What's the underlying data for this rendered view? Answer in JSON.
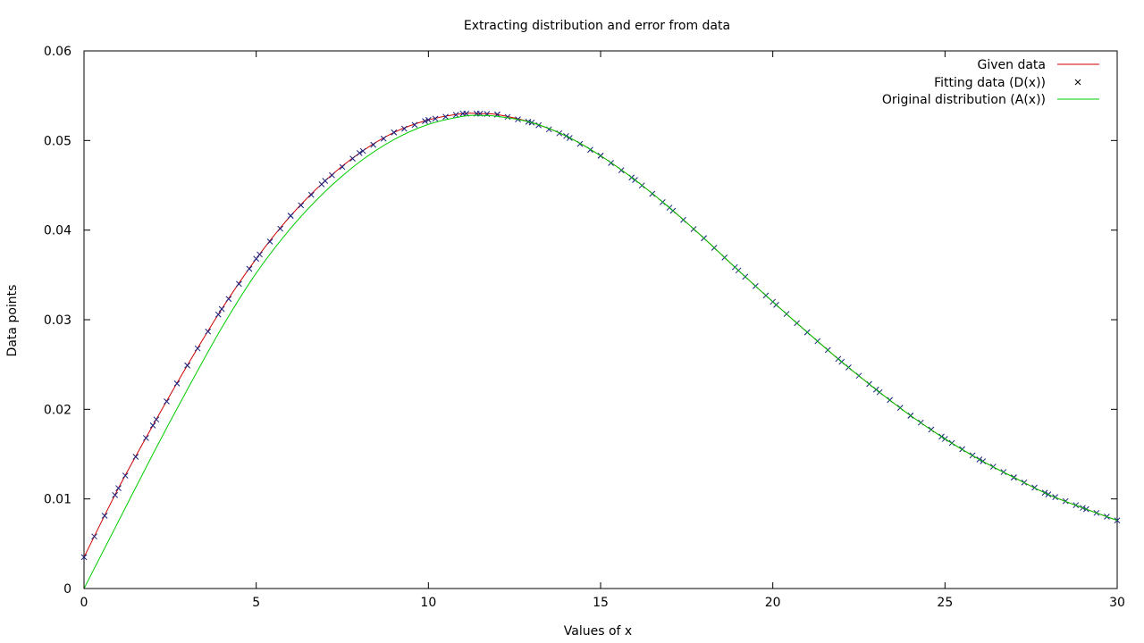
{
  "chart_data": {
    "type": "line",
    "title": "Extracting distribution and error from data",
    "xlabel": "Values of x",
    "ylabel": "Data points",
    "xlim": [
      0,
      30
    ],
    "ylim": [
      0,
      0.06
    ],
    "xticks": [
      0,
      5,
      10,
      15,
      20,
      25,
      30
    ],
    "xtick_labels": [
      "0",
      "5",
      "10",
      "15",
      "20",
      "25",
      "30"
    ],
    "yticks": [
      0,
      0.01,
      0.02,
      0.03,
      0.04,
      0.05,
      0.06
    ],
    "ytick_labels": [
      "0",
      "0.01",
      "0.02",
      "0.03",
      "0.04",
      "0.05",
      "0.06"
    ],
    "grid": false,
    "legend_position": "top-right",
    "colors": {
      "given": "#cc0000",
      "fitting": "#1a237e",
      "original": "#00cc00"
    },
    "series": [
      {
        "name": "Given data",
        "style": "line",
        "x": [
          0,
          1,
          2,
          3,
          4,
          5,
          6,
          7,
          8,
          9,
          10,
          11,
          11.5,
          12,
          13,
          14,
          15,
          16,
          17,
          18,
          19,
          20,
          21,
          22,
          23,
          24,
          25,
          26,
          27,
          28,
          29,
          30
        ],
        "y": [
          0.0035,
          0.0112,
          0.0182,
          0.0249,
          0.0312,
          0.0368,
          0.0416,
          0.0455,
          0.0486,
          0.0509,
          0.0523,
          0.053,
          0.053,
          0.0529,
          0.052,
          0.0505,
          0.0483,
          0.0456,
          0.0425,
          0.0391,
          0.0355,
          0.032,
          0.0286,
          0.0253,
          0.0222,
          0.0193,
          0.0167,
          0.0144,
          0.0124,
          0.0105,
          0.009,
          0.0076
        ]
      },
      {
        "name": "Fitting data (D(x))",
        "style": "points",
        "x": [
          0,
          1,
          2,
          3,
          4,
          5,
          6,
          7,
          8,
          9,
          10,
          11,
          11.5,
          12,
          13,
          14,
          15,
          16,
          17,
          18,
          19,
          20,
          21,
          22,
          23,
          24,
          25,
          26,
          27,
          28,
          29,
          30
        ],
        "y": [
          0.0035,
          0.0112,
          0.0182,
          0.0249,
          0.0312,
          0.0368,
          0.0416,
          0.0455,
          0.0486,
          0.0509,
          0.0523,
          0.053,
          0.053,
          0.0529,
          0.052,
          0.0505,
          0.0483,
          0.0456,
          0.0425,
          0.0391,
          0.0355,
          0.032,
          0.0286,
          0.0253,
          0.0222,
          0.0193,
          0.0167,
          0.0144,
          0.0124,
          0.0105,
          0.009,
          0.0076
        ]
      },
      {
        "name": "Original distribution (A(x))",
        "style": "line",
        "x": [
          0,
          1,
          2,
          3,
          4,
          5,
          6,
          7,
          8,
          9,
          10,
          11,
          11.5,
          12,
          13,
          14,
          15,
          16,
          17,
          18,
          19,
          20,
          21,
          22,
          23,
          24,
          25,
          26,
          27,
          28,
          29,
          30
        ],
        "y": [
          0.0,
          0.0075,
          0.015,
          0.0222,
          0.0291,
          0.0352,
          0.0402,
          0.0443,
          0.0476,
          0.0501,
          0.0518,
          0.0527,
          0.0528,
          0.0527,
          0.052,
          0.0505,
          0.0483,
          0.0456,
          0.0425,
          0.0391,
          0.0355,
          0.032,
          0.0286,
          0.0253,
          0.0222,
          0.0193,
          0.0167,
          0.0144,
          0.0124,
          0.0105,
          0.009,
          0.0076
        ]
      }
    ]
  }
}
